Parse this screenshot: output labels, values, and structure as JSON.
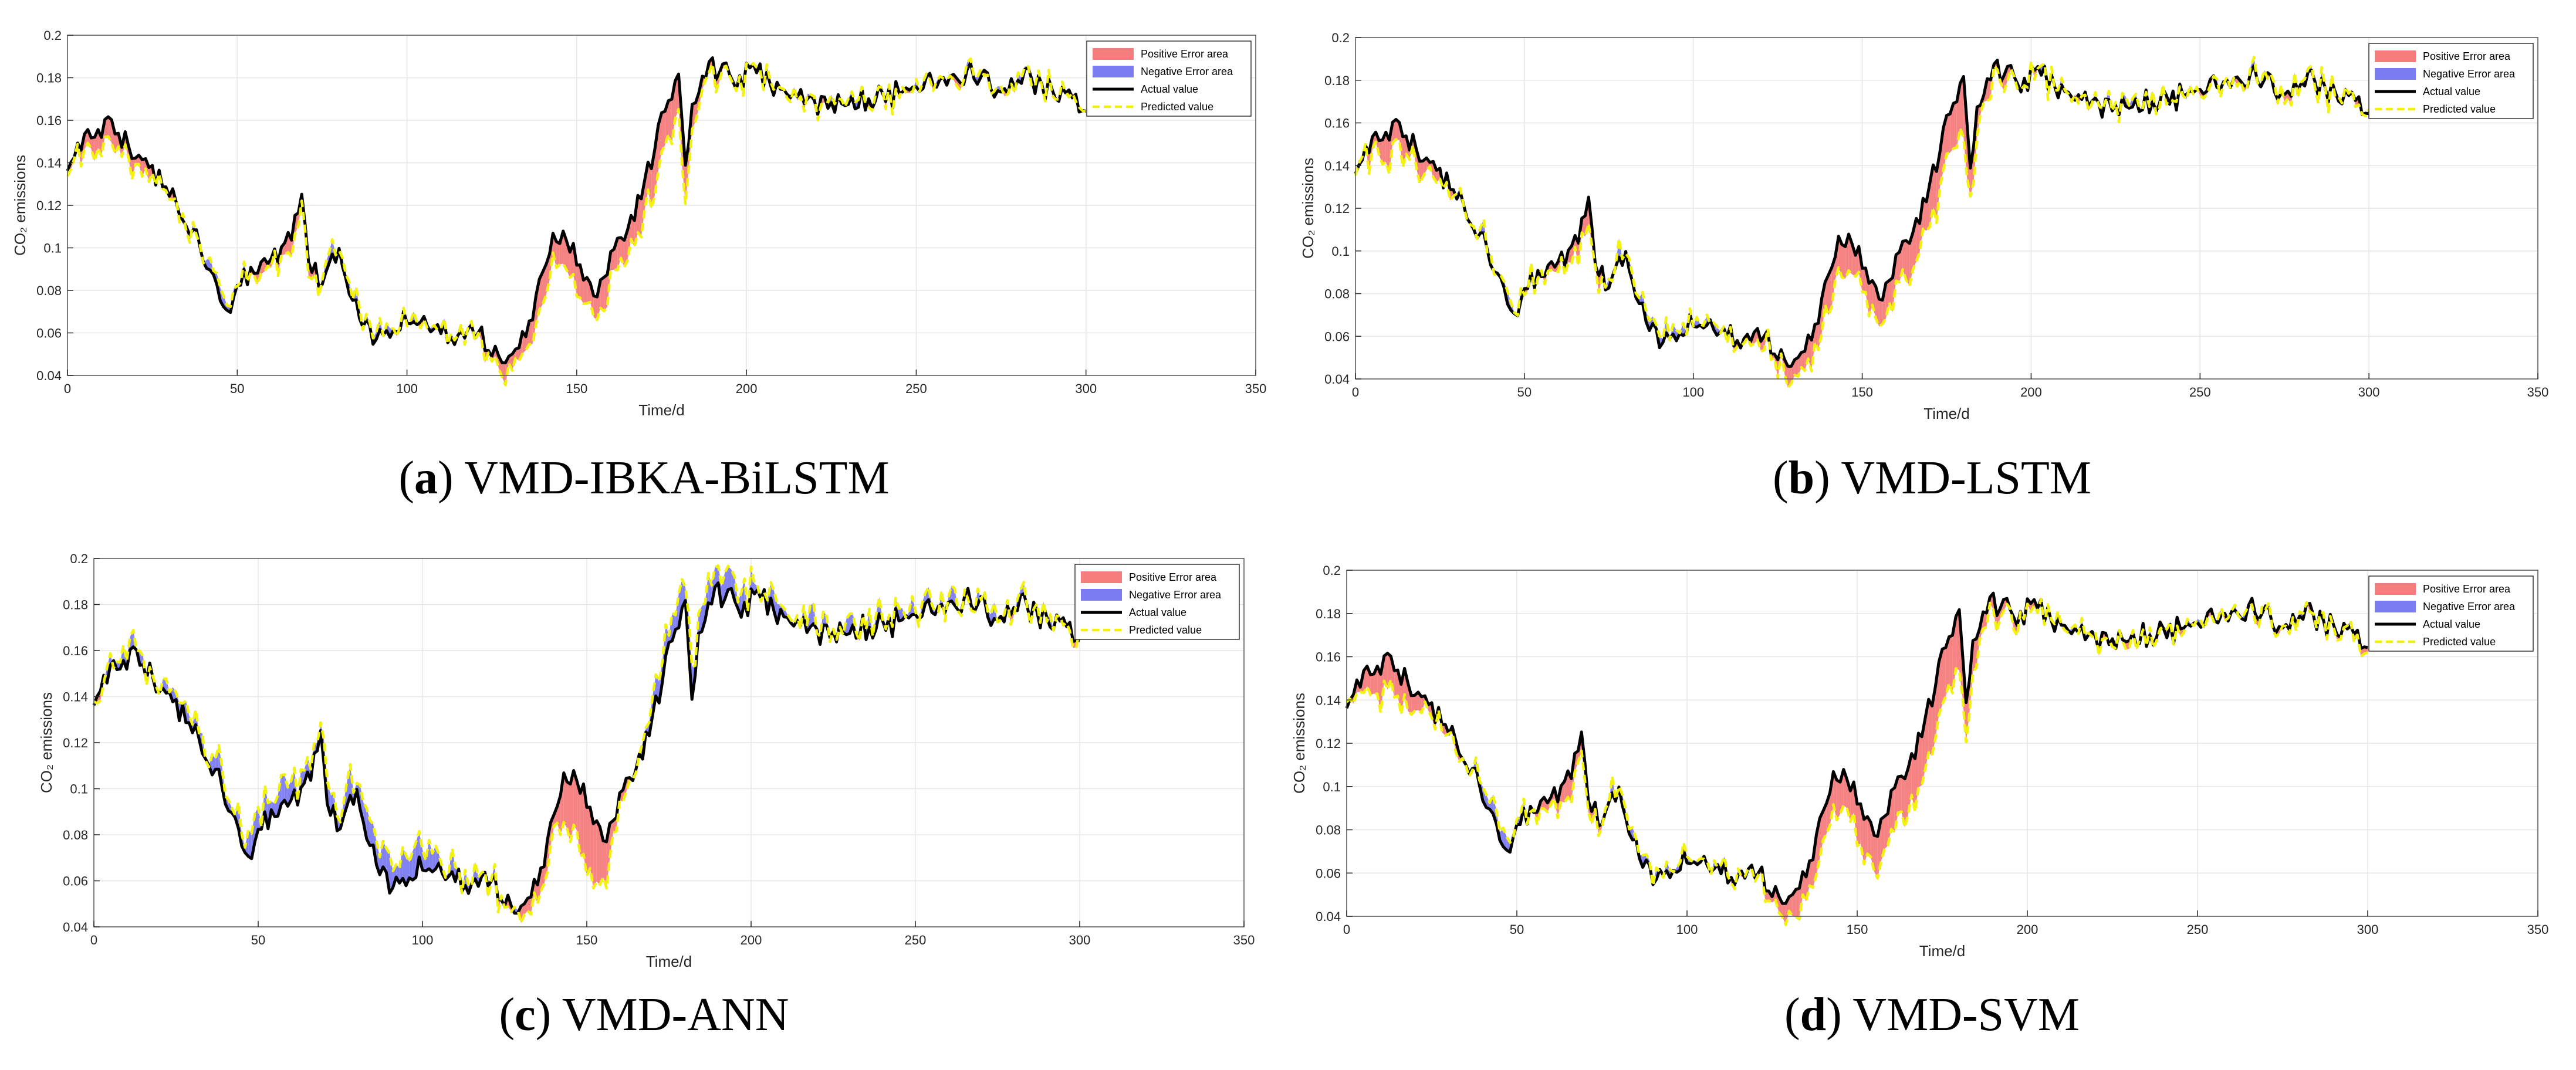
{
  "colors": {
    "positive_error": "#f47c7c",
    "negative_error": "#7b7bf2",
    "actual": "#000000",
    "predicted": "#f2f20a",
    "grid": "#e6e6e6",
    "axis": "#262626"
  },
  "chart_data": [
    {
      "id": "a",
      "type": "line",
      "caption_letter": "a",
      "caption_text": ") VMD-IBKA-BiLSTM",
      "xlabel": "Time/d",
      "ylabel": "CO₂ emissions",
      "xlim": [
        0,
        350
      ],
      "ylim": [
        0.04,
        0.2
      ],
      "xticks": [
        0,
        50,
        100,
        150,
        200,
        250,
        300,
        350
      ],
      "yticks": [
        0.04,
        0.06,
        0.08,
        0.1,
        0.12,
        0.14,
        0.16,
        0.18,
        0.2
      ],
      "ytick_labels": [
        "0.04",
        "0.06",
        "0.08",
        "0.1",
        "0.12",
        "0.14",
        "0.16",
        "0.18",
        "0.2"
      ],
      "grid": true,
      "legend_position": "top-right",
      "legend": [
        "Positive Error area",
        "Negative Error area",
        "Actual value",
        "Predicted value"
      ],
      "pred_offsets": [
        [
          0,
          0
        ],
        [
          10,
          -0.01
        ],
        [
          45,
          0.004
        ],
        [
          67,
          -0.008
        ],
        [
          78,
          0.003
        ],
        [
          115,
          0
        ],
        [
          140,
          -0.012
        ],
        [
          160,
          -0.012
        ],
        [
          174,
          -0.018
        ],
        [
          180,
          -0.02
        ],
        [
          186,
          -0.005
        ],
        [
          200,
          0
        ],
        [
          300,
          0
        ]
      ],
      "noise_amp": 0.004
    },
    {
      "id": "b",
      "type": "line",
      "caption_letter": "b",
      "caption_text": ") VMD-LSTM",
      "xlabel": "Time/d",
      "ylabel": "CO₂ emissions",
      "xlim": [
        0,
        350
      ],
      "ylim": [
        0.04,
        0.2
      ],
      "xticks": [
        0,
        50,
        100,
        150,
        200,
        250,
        300,
        350
      ],
      "yticks": [
        0.04,
        0.06,
        0.08,
        0.1,
        0.12,
        0.14,
        0.16,
        0.18,
        0.2
      ],
      "ytick_labels": [
        "0.04",
        "0.06",
        "0.08",
        "0.1",
        "0.12",
        "0.14",
        "0.16",
        "0.18",
        "0.2"
      ],
      "grid": true,
      "legend_position": "top-right",
      "legend": [
        "Positive Error area",
        "Negative Error area",
        "Actual value",
        "Predicted value"
      ],
      "pred_offsets": [
        [
          0,
          0
        ],
        [
          10,
          -0.012
        ],
        [
          45,
          0.005
        ],
        [
          67,
          -0.01
        ],
        [
          78,
          0.004
        ],
        [
          115,
          0
        ],
        [
          140,
          -0.014
        ],
        [
          160,
          -0.015
        ],
        [
          174,
          -0.02
        ],
        [
          180,
          -0.024
        ],
        [
          186,
          -0.006
        ],
        [
          200,
          0
        ],
        [
          300,
          0
        ]
      ],
      "noise_amp": 0.005
    },
    {
      "id": "c",
      "type": "line",
      "caption_letter": "c",
      "caption_text": ") VMD-ANN",
      "xlabel": "Time/d",
      "ylabel": "CO₂ emissions",
      "xlim": [
        0,
        350
      ],
      "ylim": [
        0.04,
        0.2
      ],
      "xticks": [
        0,
        50,
        100,
        150,
        200,
        250,
        300,
        350
      ],
      "yticks": [
        0.04,
        0.06,
        0.08,
        0.1,
        0.12,
        0.14,
        0.16,
        0.18,
        0.2
      ],
      "ytick_labels": [
        "0.04",
        "0.06",
        "0.08",
        "0.1",
        "0.12",
        "0.14",
        "0.16",
        "0.18",
        "0.2"
      ],
      "grid": true,
      "legend_position": "top-right",
      "legend": [
        "Positive Error area",
        "Negative Error area",
        "Actual value",
        "Predicted value"
      ],
      "pred_offsets": [
        [
          0,
          0
        ],
        [
          10,
          0.003
        ],
        [
          45,
          0.006
        ],
        [
          80,
          0.008
        ],
        [
          90,
          0.012
        ],
        [
          115,
          0.004
        ],
        [
          140,
          -0.01
        ],
        [
          150,
          -0.03
        ],
        [
          160,
          -0.005
        ],
        [
          174,
          0.008
        ],
        [
          180,
          0.01
        ],
        [
          188,
          0.01
        ],
        [
          200,
          0.004
        ],
        [
          300,
          0
        ]
      ],
      "noise_amp": 0.006
    },
    {
      "id": "d",
      "type": "line",
      "caption_letter": "d",
      "caption_text": ") VMD-SVM",
      "xlabel": "Time/d",
      "ylabel": "CO₂ emissions",
      "xlim": [
        0,
        350
      ],
      "ylim": [
        0.04,
        0.2
      ],
      "xticks": [
        0,
        50,
        100,
        150,
        200,
        250,
        300,
        350
      ],
      "yticks": [
        0.04,
        0.06,
        0.08,
        0.1,
        0.12,
        0.14,
        0.16,
        0.18,
        0.2
      ],
      "ytick_labels": [
        "0.04",
        "0.06",
        "0.08",
        "0.1",
        "0.12",
        "0.14",
        "0.16",
        "0.18",
        "0.2"
      ],
      "grid": true,
      "legend_position": "top-right",
      "legend": [
        "Positive Error area",
        "Negative Error area",
        "Actual value",
        "Predicted value"
      ],
      "pred_offsets": [
        [
          0,
          0
        ],
        [
          10,
          -0.014
        ],
        [
          45,
          0.006
        ],
        [
          67,
          -0.01
        ],
        [
          78,
          0.004
        ],
        [
          115,
          0
        ],
        [
          140,
          -0.016
        ],
        [
          160,
          -0.018
        ],
        [
          174,
          -0.024
        ],
        [
          180,
          -0.026
        ],
        [
          186,
          -0.008
        ],
        [
          200,
          0
        ],
        [
          300,
          0
        ]
      ],
      "noise_amp": 0.004
    }
  ],
  "actual_series": {
    "x": [
      0,
      3,
      6,
      9,
      12,
      15,
      18,
      21,
      24,
      27,
      30,
      33,
      36,
      39,
      42,
      45,
      48,
      51,
      54,
      57,
      60,
      63,
      66,
      69,
      72,
      75,
      78,
      81,
      84,
      87,
      90,
      95,
      100,
      105,
      110,
      115,
      120,
      125,
      128,
      131,
      134,
      137,
      140,
      143,
      146,
      149,
      152,
      155,
      158,
      161,
      164,
      167,
      170,
      173,
      176,
      179,
      180,
      182,
      185,
      188,
      191,
      194,
      197,
      200,
      205,
      210,
      215,
      220,
      225,
      230,
      235,
      240,
      245,
      250,
      255,
      260,
      265,
      270,
      275,
      280,
      285,
      290,
      295,
      300
    ],
    "y": [
      0.14,
      0.15,
      0.155,
      0.152,
      0.162,
      0.15,
      0.148,
      0.145,
      0.138,
      0.132,
      0.128,
      0.115,
      0.108,
      0.098,
      0.09,
      0.075,
      0.072,
      0.085,
      0.09,
      0.092,
      0.095,
      0.1,
      0.11,
      0.12,
      0.09,
      0.082,
      0.098,
      0.09,
      0.075,
      0.065,
      0.058,
      0.062,
      0.064,
      0.063,
      0.062,
      0.061,
      0.06,
      0.052,
      0.048,
      0.052,
      0.058,
      0.065,
      0.09,
      0.1,
      0.105,
      0.098,
      0.085,
      0.078,
      0.088,
      0.098,
      0.105,
      0.118,
      0.13,
      0.15,
      0.168,
      0.178,
      0.18,
      0.14,
      0.172,
      0.182,
      0.185,
      0.182,
      0.18,
      0.183,
      0.178,
      0.175,
      0.172,
      0.17,
      0.168,
      0.165,
      0.17,
      0.172,
      0.17,
      0.175,
      0.178,
      0.18,
      0.184,
      0.176,
      0.172,
      0.18,
      0.176,
      0.174,
      0.172,
      0.168
    ]
  }
}
